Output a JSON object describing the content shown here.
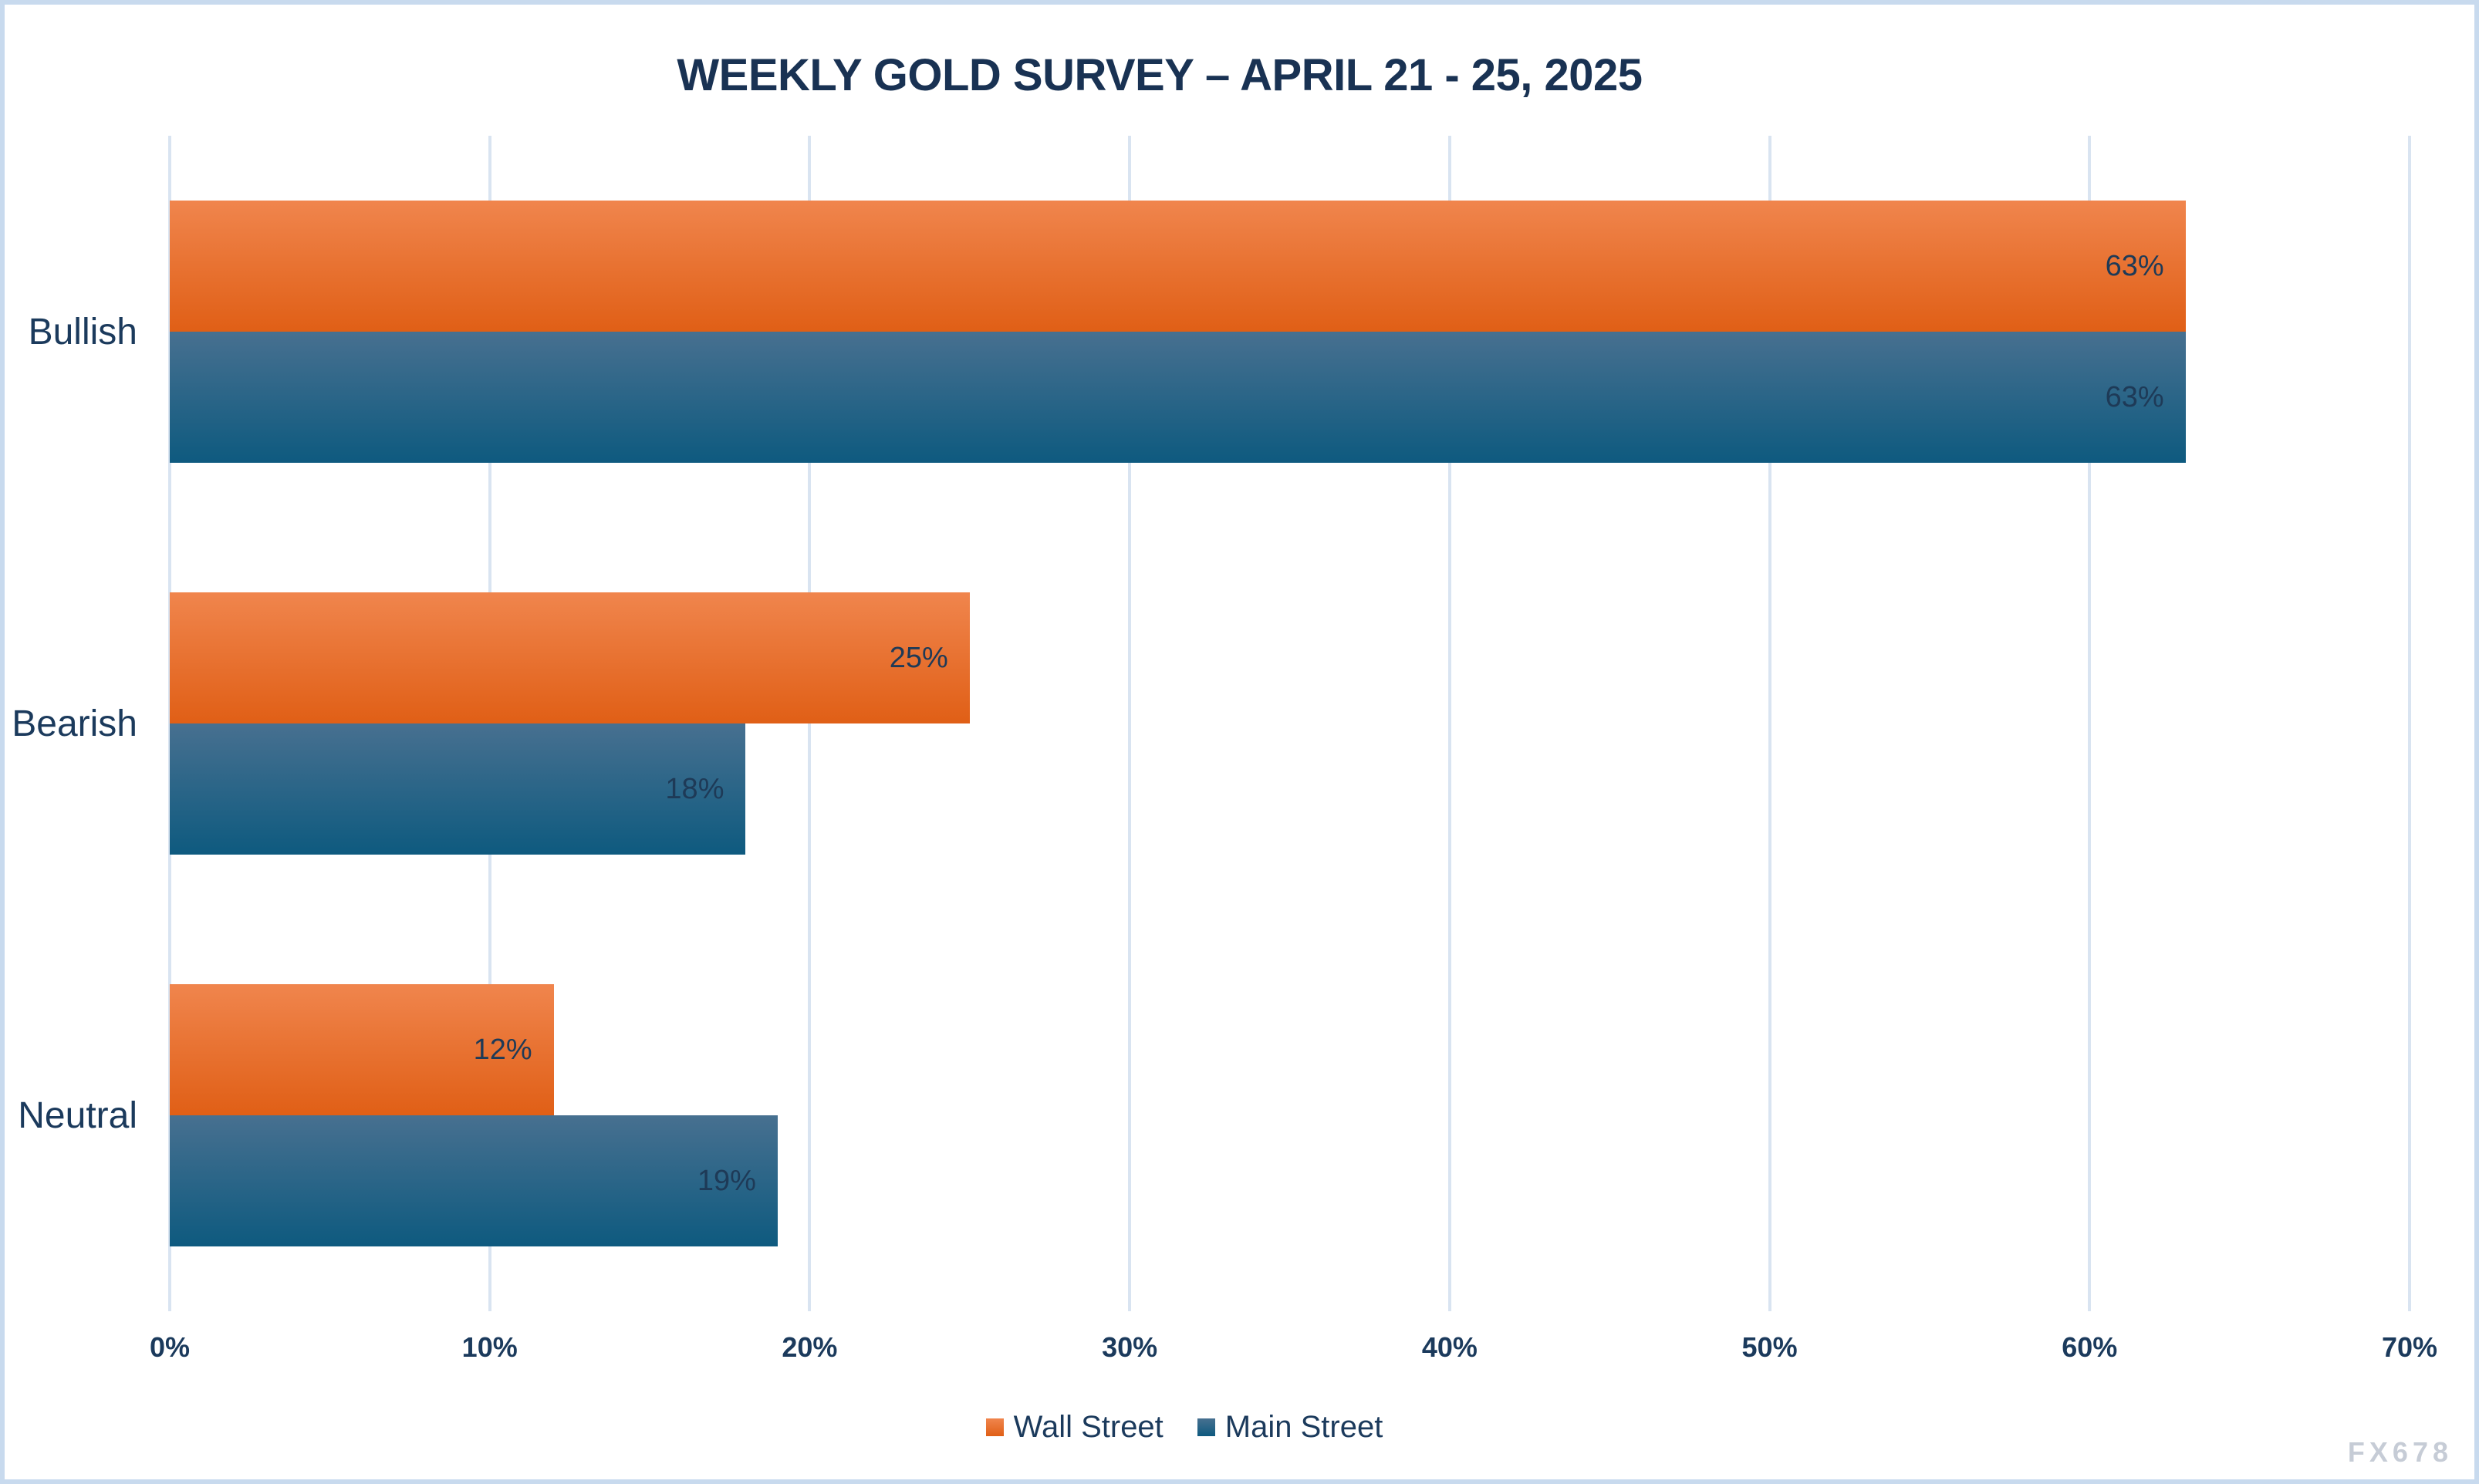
{
  "page": {
    "title": "WEEKLY GOLD SURVEY – APRIL 21 - 25, 2025",
    "watermark": "FX678"
  },
  "chart_data": {
    "type": "bar",
    "orientation": "horizontal",
    "title": "WEEKLY GOLD SURVEY – APRIL 21 - 25, 2025",
    "categories": [
      "Bullish",
      "Bearish",
      "Neutral"
    ],
    "series": [
      {
        "name": "Wall Street",
        "values": [
          63,
          25,
          12
        ]
      },
      {
        "name": "Main Street",
        "values": [
          63,
          18,
          19
        ]
      }
    ],
    "data_labels": [
      [
        "63%",
        "25%",
        "12%"
      ],
      [
        "63%",
        "18%",
        "19%"
      ]
    ],
    "value_suffix": "%",
    "x_ticks": [
      "0%",
      "10%",
      "20%",
      "30%",
      "40%",
      "50%",
      "60%",
      "70%"
    ],
    "xlim": [
      0,
      70
    ],
    "grid": true,
    "legend_position": "bottom",
    "xlabel": "",
    "ylabel": ""
  },
  "colors": {
    "series": [
      {
        "gradient_top": "#f0854d",
        "gradient_bottom": "#e05f16"
      },
      {
        "gradient_top": "#477090",
        "gradient_bottom": "#0e5a7f"
      }
    ],
    "gridline": "#d9e4f1",
    "text": "#1b3a5c",
    "title_text": "#193253",
    "page_border": "#c8daee",
    "watermark_text": "#c6ccd6",
    "background": "#ffffff"
  }
}
